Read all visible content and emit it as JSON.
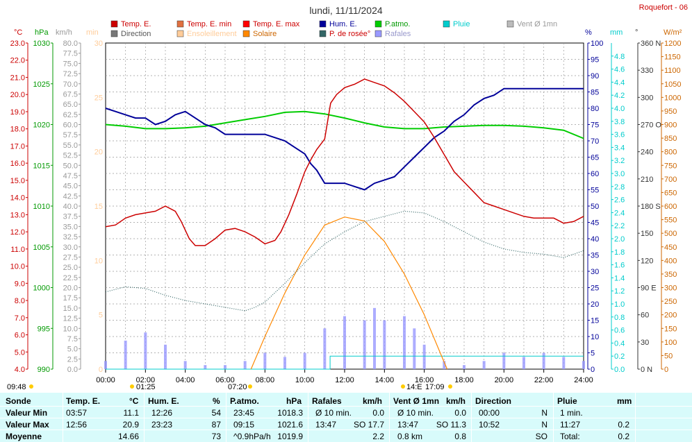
{
  "header": {
    "title": "lundi, 11/11/2024",
    "station": "Roquefort - 06"
  },
  "legend": [
    {
      "label": "Temp. E.",
      "color": "#cc0000",
      "text_color": "#cc0000"
    },
    {
      "label": "Temp. E. min",
      "color": "#e07040",
      "text_color": "#cc0000"
    },
    {
      "label": "Temp. E. max",
      "color": "#ff0000",
      "text_color": "#cc0000"
    },
    {
      "label": "Hum. E.",
      "color": "#000099",
      "text_color": "#000099"
    },
    {
      "label": "P.atmo.",
      "color": "#00cc00",
      "text_color": "#009900"
    },
    {
      "label": "Pluie",
      "color": "#00cccc",
      "text_color": "#00cccc"
    },
    {
      "label": "Vent Ø 1mn",
      "color": "#bbbbbb",
      "text_color": "#999999"
    },
    {
      "label": "Direction",
      "color": "#777777",
      "text_color": "#555555"
    },
    {
      "label": "Ensoleillement",
      "color": "#ffcc99",
      "text_color": "#ffcc99"
    },
    {
      "label": "Solaire",
      "color": "#ff8800",
      "text_color": "#cc6600"
    },
    {
      "label": "P. de rosée°",
      "color": "#336666",
      "text_color": "#cc0000"
    },
    {
      "label": "Rafales",
      "color": "#9999ff",
      "text_color": "#9999cc"
    }
  ],
  "axis_units": {
    "temp": "°C",
    "press": "hPa",
    "wind": "km/h",
    "min": "min",
    "hum": "%",
    "rain": "mm",
    "dir": "°",
    "solar": "W/m²"
  },
  "time_markers": {
    "sunrise": "07:20",
    "sunset": "17:09",
    "dawn": "09:48",
    "moon1": "01:25",
    "moon2": "14:E"
  },
  "chart_data": {
    "type": "line",
    "title": "lundi, 11/11/2024",
    "x_ticks": [
      "00:00",
      "02:00",
      "04:00",
      "06:00",
      "08:00",
      "10:00",
      "12:00",
      "14:00",
      "16:00",
      "18:00",
      "20:00",
      "22:00",
      "24:00"
    ],
    "xlim": [
      0,
      24
    ],
    "axes": {
      "temp_c": {
        "range": [
          4.0,
          23.0
        ],
        "ticks": [
          "4.0",
          "5.0",
          "6.0",
          "7.0",
          "8.0",
          "9.0",
          "10.0",
          "11.0",
          "12.0",
          "13.0",
          "14.0",
          "15.0",
          "16.0",
          "17.0",
          "18.0",
          "19.0",
          "20.0",
          "21.0",
          "22.0",
          "23.0"
        ]
      },
      "pressure_hpa": {
        "range": [
          990,
          1030
        ],
        "ticks": [
          "990",
          "995",
          "1000",
          "1005",
          "1010",
          "1015",
          "1020",
          "1025",
          "1030"
        ]
      },
      "wind_kmh": {
        "range": [
          0,
          80
        ],
        "ticks": [
          "0.0",
          "2.5",
          "5.0",
          "7.5",
          "10.0",
          "12.5",
          "15.0",
          "17.5",
          "20.0",
          "22.5",
          "25.0",
          "27.5",
          "30.0",
          "32.5",
          "35.0",
          "37.5",
          "40.0",
          "42.5",
          "45.0",
          "47.5",
          "50.0",
          "52.5",
          "55.0",
          "57.5",
          "60.0",
          "62.5",
          "65.0",
          "67.5",
          "70.0",
          "72.5",
          "75.0",
          "77.5",
          "80.0"
        ]
      },
      "sun_min": {
        "range": [
          0,
          30
        ],
        "ticks": [
          "0",
          "5",
          "10",
          "15",
          "20",
          "25",
          "30"
        ]
      },
      "humidity_pct": {
        "range": [
          0,
          100
        ],
        "ticks": [
          "0",
          "5",
          "10",
          "15",
          "20",
          "25",
          "30",
          "35",
          "40",
          "45",
          "50",
          "55",
          "60",
          "65",
          "70",
          "75",
          "80",
          "85",
          "90",
          "95",
          "100"
        ]
      },
      "rain_mm": {
        "range": [
          0,
          5
        ],
        "ticks": [
          "0.0",
          "0.2",
          "0.4",
          "0.6",
          "0.8",
          "1.0",
          "1.2",
          "1.4",
          "1.6",
          "1.8",
          "2.0",
          "2.2",
          "2.4",
          "2.6",
          "2.8",
          "3.0",
          "3.2",
          "3.4",
          "3.6",
          "3.8",
          "4.0",
          "4.2",
          "4.4",
          "4.6",
          "4.8"
        ]
      },
      "direction_deg": {
        "range": [
          0,
          360
        ],
        "ticks": [
          "0 N",
          "30",
          "60",
          "90 E",
          "120",
          "150",
          "180 S",
          "210",
          "240",
          "270 O",
          "300",
          "330",
          "360 N"
        ]
      },
      "solar_wm2": {
        "range": [
          0,
          1200
        ],
        "ticks": [
          "0",
          "50",
          "100",
          "150",
          "200",
          "250",
          "300",
          "350",
          "400",
          "450",
          "500",
          "550",
          "600",
          "650",
          "700",
          "750",
          "800",
          "850",
          "900",
          "950",
          "1000",
          "1050",
          "1100",
          "1150",
          "1200"
        ]
      }
    },
    "series": [
      {
        "name": "Temp. E.",
        "axis": "temp_c",
        "color": "#cc0000",
        "points": [
          [
            0,
            12.3
          ],
          [
            0.5,
            12.4
          ],
          [
            1,
            12.8
          ],
          [
            1.5,
            13.0
          ],
          [
            2,
            13.1
          ],
          [
            2.5,
            13.2
          ],
          [
            3,
            13.5
          ],
          [
            3.5,
            13.2
          ],
          [
            3.8,
            12.6
          ],
          [
            4.2,
            11.6
          ],
          [
            4.5,
            11.2
          ],
          [
            5,
            11.2
          ],
          [
            5.5,
            11.6
          ],
          [
            6,
            12.1
          ],
          [
            6.5,
            12.2
          ],
          [
            7,
            12.0
          ],
          [
            7.5,
            11.7
          ],
          [
            8,
            11.3
          ],
          [
            8.5,
            11.5
          ],
          [
            8.8,
            12.0
          ],
          [
            9.2,
            13.0
          ],
          [
            9.6,
            14.2
          ],
          [
            10,
            15.5
          ],
          [
            10.3,
            16.2
          ],
          [
            10.6,
            16.8
          ],
          [
            11,
            17.4
          ],
          [
            11.3,
            19.5
          ],
          [
            11.6,
            20.0
          ],
          [
            12,
            20.4
          ],
          [
            12.5,
            20.6
          ],
          [
            13,
            20.9
          ],
          [
            13.5,
            20.7
          ],
          [
            14,
            20.5
          ],
          [
            14.5,
            20.1
          ],
          [
            15,
            19.6
          ],
          [
            15.5,
            19.0
          ],
          [
            16,
            18.4
          ],
          [
            16.5,
            17.5
          ],
          [
            17,
            16.5
          ],
          [
            17.5,
            15.5
          ],
          [
            18,
            14.9
          ],
          [
            18.5,
            14.3
          ],
          [
            19,
            13.7
          ],
          [
            19.5,
            13.5
          ],
          [
            20,
            13.3
          ],
          [
            20.5,
            13.1
          ],
          [
            21,
            12.9
          ],
          [
            21.5,
            12.8
          ],
          [
            22,
            12.8
          ],
          [
            22.5,
            12.8
          ],
          [
            23,
            12.5
          ],
          [
            23.5,
            12.6
          ],
          [
            24,
            12.9
          ]
        ]
      },
      {
        "name": "Hum. E.",
        "axis": "humidity_pct",
        "color": "#000099",
        "points": [
          [
            0,
            80
          ],
          [
            0.5,
            79
          ],
          [
            1,
            78
          ],
          [
            1.5,
            77
          ],
          [
            2,
            77
          ],
          [
            2.5,
            75
          ],
          [
            3,
            76
          ],
          [
            3.5,
            78
          ],
          [
            4,
            79
          ],
          [
            4.5,
            77
          ],
          [
            5,
            75
          ],
          [
            5.5,
            74
          ],
          [
            6,
            72
          ],
          [
            6.5,
            72
          ],
          [
            7,
            72
          ],
          [
            7.5,
            72
          ],
          [
            8,
            72
          ],
          [
            8.5,
            71
          ],
          [
            9,
            70
          ],
          [
            9.5,
            68
          ],
          [
            10,
            66
          ],
          [
            10.3,
            63
          ],
          [
            10.6,
            61
          ],
          [
            11,
            57
          ],
          [
            11.5,
            57
          ],
          [
            12,
            57
          ],
          [
            12.5,
            56
          ],
          [
            13,
            55
          ],
          [
            13.5,
            57
          ],
          [
            14,
            58
          ],
          [
            14.5,
            59
          ],
          [
            15,
            62
          ],
          [
            15.5,
            65
          ],
          [
            16,
            68
          ],
          [
            16.5,
            71
          ],
          [
            17,
            73
          ],
          [
            17.5,
            76
          ],
          [
            18,
            78
          ],
          [
            18.5,
            81
          ],
          [
            19,
            83
          ],
          [
            19.5,
            84
          ],
          [
            20,
            86
          ],
          [
            20.5,
            86
          ],
          [
            21,
            86
          ],
          [
            21.5,
            86
          ],
          [
            22,
            86
          ],
          [
            22.5,
            86
          ],
          [
            23,
            86
          ],
          [
            23.5,
            86
          ],
          [
            24,
            86
          ]
        ]
      },
      {
        "name": "P.atmo.",
        "axis": "pressure_hpa",
        "color": "#00cc00",
        "points": [
          [
            0,
            1020
          ],
          [
            1,
            1019.8
          ],
          [
            2,
            1019.5
          ],
          [
            3,
            1019.5
          ],
          [
            4,
            1019.6
          ],
          [
            5,
            1019.8
          ],
          [
            6,
            1020.2
          ],
          [
            7,
            1020.6
          ],
          [
            8,
            1021.0
          ],
          [
            9,
            1021.5
          ],
          [
            10,
            1021.6
          ],
          [
            11,
            1021.3
          ],
          [
            12,
            1020.8
          ],
          [
            13,
            1020.2
          ],
          [
            14,
            1019.7
          ],
          [
            15,
            1019.5
          ],
          [
            16,
            1019.5
          ],
          [
            17,
            1019.7
          ],
          [
            18,
            1019.8
          ],
          [
            19,
            1019.9
          ],
          [
            20,
            1019.9
          ],
          [
            21,
            1019.8
          ],
          [
            22,
            1019.6
          ],
          [
            23,
            1019.3
          ],
          [
            24,
            1018.3
          ]
        ]
      },
      {
        "name": "P. de rosée°",
        "axis": "temp_c",
        "color": "#336666",
        "points": [
          [
            0,
            8.5
          ],
          [
            1,
            8.8
          ],
          [
            2,
            8.7
          ],
          [
            3,
            8.3
          ],
          [
            4,
            8.0
          ],
          [
            5,
            7.8
          ],
          [
            6,
            7.6
          ],
          [
            7,
            7.4
          ],
          [
            7.5,
            7.6
          ],
          [
            8,
            7.9
          ],
          [
            9,
            9.0
          ],
          [
            10,
            10.2
          ],
          [
            11,
            11.3
          ],
          [
            12,
            12.0
          ],
          [
            13,
            12.6
          ],
          [
            14,
            12.9
          ],
          [
            15,
            13.2
          ],
          [
            16,
            13.1
          ],
          [
            17,
            12.6
          ],
          [
            18,
            12.0
          ],
          [
            19,
            11.4
          ],
          [
            20,
            11.0
          ],
          [
            21,
            10.8
          ],
          [
            22,
            10.7
          ],
          [
            23,
            10.5
          ],
          [
            24,
            10.9
          ]
        ]
      },
      {
        "name": "Solaire",
        "axis": "solar_wm2",
        "color": "#ff8800",
        "points": [
          [
            7.3,
            0
          ],
          [
            8,
            120
          ],
          [
            9,
            280
          ],
          [
            10,
            420
          ],
          [
            11,
            530
          ],
          [
            12,
            560
          ],
          [
            13,
            545
          ],
          [
            14,
            470
          ],
          [
            15,
            350
          ],
          [
            16,
            200
          ],
          [
            16.8,
            60
          ],
          [
            17.15,
            0
          ]
        ]
      },
      {
        "name": "Rafales",
        "axis": "wind_kmh",
        "color": "#9999ff",
        "points": [
          [
            0,
            2
          ],
          [
            1,
            7
          ],
          [
            2,
            9
          ],
          [
            3,
            6
          ],
          [
            4,
            2
          ],
          [
            5,
            1
          ],
          [
            6,
            1
          ],
          [
            7,
            2
          ],
          [
            8,
            4
          ],
          [
            9,
            3
          ],
          [
            10,
            4
          ],
          [
            11,
            10
          ],
          [
            12,
            13
          ],
          [
            13,
            12
          ],
          [
            13.5,
            15
          ],
          [
            14,
            12
          ],
          [
            15,
            13
          ],
          [
            15.5,
            10
          ],
          [
            16,
            6
          ],
          [
            17,
            2
          ],
          [
            18,
            1
          ],
          [
            19,
            2
          ],
          [
            20,
            4
          ],
          [
            21,
            3
          ],
          [
            22,
            4
          ],
          [
            23,
            3
          ],
          [
            24,
            2
          ]
        ]
      },
      {
        "name": "Pluie",
        "axis": "rain_mm",
        "color": "#00cccc",
        "points": [
          [
            0,
            0
          ],
          [
            11.27,
            0
          ],
          [
            11.27,
            0.2
          ],
          [
            24,
            0.2
          ]
        ]
      }
    ]
  },
  "stats": {
    "headers": {
      "sonde": "Sonde",
      "temp": "Temp. E.",
      "temp_u": "°C",
      "hum": "Hum. E.",
      "hum_u": "%",
      "press": "P.atmo.",
      "press_u": "hPa",
      "gust": "Rafales",
      "gust_u": "km/h",
      "wind": "Vent Ø 1mn",
      "wind_u": "km/h",
      "dir": "Direction",
      "rain": "Pluie",
      "rain_u": "mm"
    },
    "rows": [
      {
        "label": "Valeur Min",
        "t_time": "03:57",
        "t_val": "11.1",
        "h_time": "12:26",
        "h_val": "54",
        "p_time": "23:45",
        "p_val": "1018.3",
        "g_time": "Ø 10 min.",
        "g_val": "0.0",
        "w_time": "Ø 10 min.",
        "w_val": "0.0",
        "d_time": "00:00",
        "d_val": "N",
        "r_time": "1 min.",
        "r_val": ""
      },
      {
        "label": "Valeur Max",
        "t_time": "12:56",
        "t_val": "20.9",
        "h_time": "23:23",
        "h_val": "87",
        "p_time": "09:15",
        "p_val": "1021.6",
        "g_time": "13:47",
        "g_val": "SO 17.7",
        "w_time": "13:47",
        "w_val": "SO 11.3",
        "d_time": "10:52",
        "d_val": "N",
        "r_time": "11:27",
        "r_val": "0.2"
      },
      {
        "label": "Moyenne",
        "t_time": "",
        "t_val": "14.66",
        "h_time": "",
        "h_val": "73",
        "p_time": "^0.9hPa/h",
        "p_val": "1019.9",
        "g_time": "",
        "g_val": "2.2",
        "w_time": "0.8 km",
        "w_val": "0.8",
        "d_time": "",
        "d_val": "SO",
        "r_time": "Total:",
        "r_val": "0.2"
      }
    ]
  }
}
